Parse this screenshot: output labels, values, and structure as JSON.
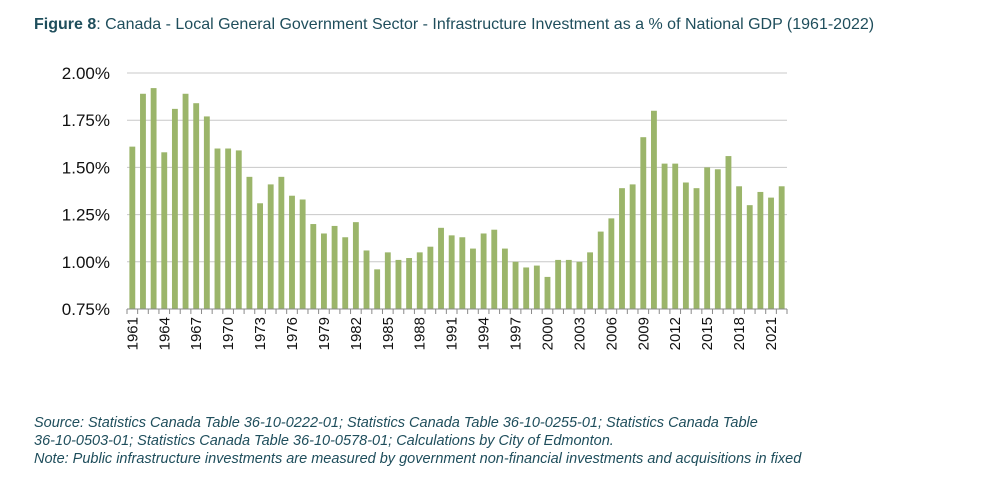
{
  "title": {
    "label": "Figure 8",
    "text": ": Canada - Local General Government Sector - Infrastructure Investment as a % of National GDP (1961-2022)"
  },
  "notes": {
    "source_line1": "Source: Statistics Canada Table 36-10-0222-01; Statistics Canada Table 36-10-0255-01; Statistics Canada Table",
    "source_line2": "36-10-0503-01; Statistics Canada Table 36-10-0578-01; Calculations by City of Edmonton.",
    "note_line": "Note: Public infrastructure investments are measured by government non-financial investments and acquisitions in fixed"
  },
  "chart_data": {
    "type": "bar",
    "color": "#9bb56a",
    "gridlines": true,
    "legend": "none",
    "ylim": [
      0.75,
      2.0
    ],
    "ytick_labels": [
      "0.75%",
      "1.00%",
      "1.25%",
      "1.50%",
      "1.75%",
      "2.00%"
    ],
    "yticks": [
      0.75,
      1.0,
      1.25,
      1.5,
      1.75,
      2.0
    ],
    "xtick_labels": [
      "1961",
      "1964",
      "1967",
      "1970",
      "1973",
      "1976",
      "1979",
      "1982",
      "1985",
      "1988",
      "1991",
      "1994",
      "1997",
      "2000",
      "2003",
      "2006",
      "2009",
      "2012",
      "2015",
      "2018",
      "2021"
    ],
    "categories": [
      1961,
      1962,
      1963,
      1964,
      1965,
      1966,
      1967,
      1968,
      1969,
      1970,
      1971,
      1972,
      1973,
      1974,
      1975,
      1976,
      1977,
      1978,
      1979,
      1980,
      1981,
      1982,
      1983,
      1984,
      1985,
      1986,
      1987,
      1988,
      1989,
      1990,
      1991,
      1992,
      1993,
      1994,
      1995,
      1996,
      1997,
      1998,
      1999,
      2000,
      2001,
      2002,
      2003,
      2004,
      2005,
      2006,
      2007,
      2008,
      2009,
      2010,
      2011,
      2012,
      2013,
      2014,
      2015,
      2016,
      2017,
      2018,
      2019,
      2020,
      2021,
      2022
    ],
    "values": [
      1.61,
      1.89,
      1.92,
      1.58,
      1.81,
      1.89,
      1.84,
      1.77,
      1.6,
      1.6,
      1.59,
      1.45,
      1.31,
      1.41,
      1.45,
      1.35,
      1.33,
      1.2,
      1.15,
      1.19,
      1.13,
      1.21,
      1.06,
      0.96,
      1.05,
      1.01,
      1.02,
      1.05,
      1.08,
      1.18,
      1.14,
      1.13,
      1.07,
      1.15,
      1.17,
      1.07,
      1.0,
      0.97,
      0.98,
      0.92,
      1.01,
      1.01,
      1.0,
      1.05,
      1.16,
      1.23,
      1.39,
      1.41,
      1.66,
      1.8,
      1.52,
      1.52,
      1.42,
      1.39,
      1.5,
      1.49,
      1.56,
      1.4,
      1.3,
      1.37,
      1.34,
      1.4
    ]
  }
}
